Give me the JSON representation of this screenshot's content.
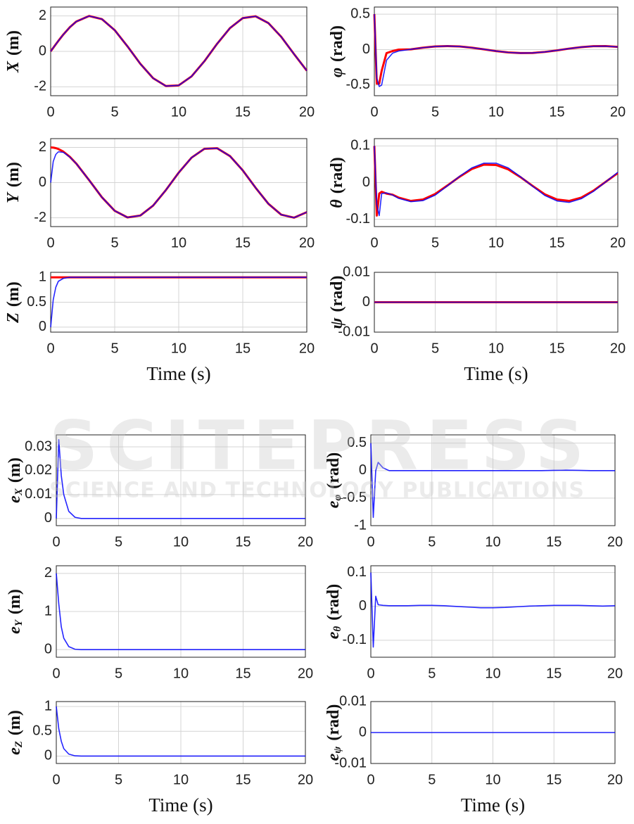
{
  "chart_data": [
    {
      "type": "line",
      "ylabel": "X",
      "ylabel_unit": "(m)",
      "x": [
        0,
        0.2,
        0.4,
        0.6,
        1,
        1.5,
        2,
        3,
        4,
        5,
        6,
        7,
        8,
        9,
        10,
        11,
        12,
        13,
        14,
        15,
        16,
        17,
        18,
        19,
        20
      ],
      "series": [
        {
          "color": "#ff0000",
          "values": [
            0,
            0.2,
            0.397,
            0.591,
            0.959,
            1.363,
            1.683,
            1.995,
            1.819,
            1.197,
            0.282,
            -0.701,
            -1.514,
            -1.955,
            -1.918,
            -1.411,
            -0.559,
            0.43,
            1.314,
            1.876,
            1.979,
            1.596,
            0.824,
            -0.15,
            -1.088
          ]
        },
        {
          "color": "#0000ff",
          "values": [
            0,
            0.2,
            0.397,
            0.591,
            0.959,
            1.363,
            1.683,
            1.995,
            1.819,
            1.197,
            0.282,
            -0.701,
            -1.514,
            -1.955,
            -1.918,
            -1.411,
            -0.559,
            0.43,
            1.314,
            1.876,
            1.979,
            1.596,
            0.824,
            -0.15,
            -1.088
          ]
        }
      ],
      "xlim": [
        0,
        20
      ],
      "ylim": [
        -2.5,
        2.5
      ],
      "xticks": [
        0,
        5,
        10,
        15,
        20
      ],
      "yticks": [
        -2,
        0,
        2
      ],
      "grid": true
    },
    {
      "type": "line",
      "ylabel": "Y",
      "ylabel_unit": "(m)",
      "x": [
        0,
        0.2,
        0.4,
        0.6,
        1,
        1.5,
        2,
        3,
        4,
        5,
        6,
        7,
        8,
        9,
        10,
        11,
        12,
        13,
        14,
        15,
        16,
        17,
        18,
        19,
        20
      ],
      "series": [
        {
          "color": "#ff0000",
          "values": [
            2,
            1.99,
            1.96,
            1.91,
            1.755,
            1.463,
            1.081,
            0.141,
            -0.832,
            -1.602,
            -1.98,
            -1.873,
            -1.307,
            -0.421,
            0.567,
            1.417,
            1.92,
            1.953,
            1.508,
            0.693,
            -0.291,
            -1.203,
            -1.822,
            -1.994,
            -1.678
          ]
        },
        {
          "color": "#0000ff",
          "values": [
            0,
            1.2,
            1.6,
            1.75,
            1.72,
            1.45,
            1.08,
            0.141,
            -0.832,
            -1.602,
            -1.98,
            -1.873,
            -1.307,
            -0.421,
            0.567,
            1.417,
            1.92,
            1.953,
            1.508,
            0.693,
            -0.291,
            -1.203,
            -1.822,
            -1.994,
            -1.678
          ]
        }
      ],
      "xlim": [
        0,
        20
      ],
      "ylim": [
        -2.5,
        2.5
      ],
      "xticks": [
        0,
        5,
        10,
        15,
        20
      ],
      "yticks": [
        -2,
        0,
        2
      ],
      "grid": true
    },
    {
      "type": "line",
      "ylabel": "Z",
      "ylabel_unit": "(m)",
      "xlabel": "Time (s)",
      "x": [
        0,
        0.2,
        0.4,
        0.6,
        1,
        1.5,
        2,
        3,
        4,
        5,
        6,
        7,
        8,
        9,
        10,
        11,
        12,
        13,
        14,
        15,
        16,
        17,
        18,
        19,
        20
      ],
      "series": [
        {
          "color": "#ff0000",
          "values": [
            1,
            1,
            1,
            1,
            1,
            1,
            1,
            1,
            1,
            1,
            1,
            1,
            1,
            1,
            1,
            1,
            1,
            1,
            1,
            1,
            1,
            1,
            1,
            1,
            1
          ]
        },
        {
          "color": "#0000ff",
          "values": [
            0,
            0.55,
            0.8,
            0.92,
            0.98,
            1,
            1,
            1,
            1,
            1,
            1,
            1,
            1,
            1,
            1,
            1,
            1,
            1,
            1,
            1,
            1,
            1,
            1,
            1,
            1
          ]
        }
      ],
      "xlim": [
        0,
        20
      ],
      "ylim": [
        -0.1,
        1.1
      ],
      "xticks": [
        0,
        5,
        10,
        15,
        20
      ],
      "yticks": [
        0,
        0.5,
        1
      ],
      "grid": true
    },
    {
      "type": "line",
      "ylabel": "φ",
      "ylabel_unit": "(rad)",
      "x": [
        0,
        0.2,
        0.4,
        0.6,
        1,
        1.5,
        2,
        3,
        4,
        5,
        6,
        7,
        8,
        9,
        10,
        11,
        12,
        13,
        14,
        15,
        16,
        17,
        18,
        19,
        20
      ],
      "series": [
        {
          "color": "#ff0000",
          "values": [
            0.5,
            -0.48,
            -0.48,
            -0.3,
            -0.05,
            -0.02,
            0,
            0.004,
            0.027,
            0.044,
            0.05,
            0.044,
            0.027,
            0.004,
            -0.021,
            -0.04,
            -0.049,
            -0.047,
            -0.033,
            -0.011,
            0.014,
            0.035,
            0.048,
            0.049,
            0.038
          ]
        },
        {
          "color": "#0000ff",
          "values": [
            0.5,
            -0.4,
            -0.52,
            -0.5,
            -0.15,
            -0.05,
            -0.02,
            0.004,
            0.027,
            0.044,
            0.05,
            0.044,
            0.027,
            0.004,
            -0.021,
            -0.04,
            -0.049,
            -0.047,
            -0.033,
            -0.011,
            0.014,
            0.035,
            0.048,
            0.049,
            0.038
          ]
        }
      ],
      "xlim": [
        0,
        20
      ],
      "ylim": [
        -0.65,
        0.6
      ],
      "xticks": [
        0,
        5,
        10,
        15,
        20
      ],
      "yticks": [
        -0.5,
        0,
        0.5
      ],
      "grid": true
    },
    {
      "type": "line",
      "ylabel": "θ",
      "ylabel_unit": "(rad)",
      "x": [
        0,
        0.2,
        0.4,
        0.6,
        1,
        1.5,
        2,
        3,
        4,
        5,
        6,
        7,
        8,
        9,
        10,
        11,
        12,
        13,
        14,
        15,
        16,
        17,
        18,
        19,
        20
      ],
      "series": [
        {
          "color": "#ff0000",
          "values": [
            0.1,
            -0.09,
            -0.03,
            -0.025,
            -0.03,
            -0.033,
            -0.041,
            -0.05,
            -0.046,
            -0.031,
            -0.008,
            0.016,
            0.037,
            0.049,
            0.048,
            0.036,
            0.015,
            -0.009,
            -0.032,
            -0.046,
            -0.05,
            -0.041,
            -0.022,
            0.002,
            0.026
          ]
        },
        {
          "color": "#0000ff",
          "values": [
            0.1,
            -0.06,
            -0.09,
            -0.03,
            -0.028,
            -0.034,
            -0.043,
            -0.052,
            -0.049,
            -0.034,
            -0.009,
            0.017,
            0.04,
            0.053,
            0.053,
            0.04,
            0.016,
            -0.01,
            -0.035,
            -0.05,
            -0.054,
            -0.044,
            -0.024,
            0.002,
            0.028
          ]
        }
      ],
      "xlim": [
        0,
        20
      ],
      "ylim": [
        -0.12,
        0.12
      ],
      "xticks": [
        0,
        5,
        10,
        15,
        20
      ],
      "yticks": [
        -0.1,
        0,
        0.1
      ],
      "grid": true
    },
    {
      "type": "line",
      "ylabel": "ψ",
      "ylabel_unit": "(rad)",
      "xlabel": "Time (s)",
      "x": [
        0,
        0.2,
        0.4,
        0.6,
        1,
        1.5,
        2,
        3,
        4,
        5,
        6,
        7,
        8,
        9,
        10,
        11,
        12,
        13,
        14,
        15,
        16,
        17,
        18,
        19,
        20
      ],
      "series": [
        {
          "color": "#ff0000",
          "values": [
            0,
            0,
            0,
            0,
            0,
            0,
            0,
            0,
            0,
            0,
            0,
            0,
            0,
            0,
            0,
            0,
            0,
            0,
            0,
            0,
            0,
            0,
            0,
            0,
            0
          ]
        },
        {
          "color": "#0000ff",
          "values": [
            0,
            0,
            0,
            0,
            0,
            0,
            0,
            0,
            0,
            0,
            0,
            0,
            0,
            0,
            0,
            0,
            0,
            0,
            0,
            0,
            0,
            0,
            0,
            0,
            0
          ]
        }
      ],
      "xlim": [
        0,
        20
      ],
      "ylim": [
        -0.01,
        0.01
      ],
      "xticks": [
        0,
        5,
        10,
        15,
        20
      ],
      "yticks": [
        -0.01,
        0,
        0.01
      ],
      "grid": true
    },
    {
      "type": "line",
      "ylabel": "e",
      "ylabel_sub": "X",
      "ylabel_unit": "(m)",
      "x": [
        0,
        0.2,
        0.4,
        0.6,
        1,
        1.5,
        2,
        3,
        4,
        5,
        6,
        7,
        8,
        9,
        10,
        11,
        12,
        13,
        14,
        15,
        16,
        17,
        18,
        19,
        20
      ],
      "series": [
        {
          "color": "#0000ff",
          "values": [
            0,
            0.033,
            0.018,
            0.01,
            0.003,
            0.0005,
            0,
            0,
            0,
            0,
            0,
            0,
            0,
            0,
            0,
            0,
            0,
            0,
            0,
            0,
            0,
            0,
            0,
            0,
            0
          ]
        }
      ],
      "xlim": [
        0,
        20
      ],
      "ylim": [
        -0.003,
        0.035
      ],
      "xticks": [
        0,
        5,
        10,
        15,
        20
      ],
      "yticks": [
        0,
        0.01,
        0.02,
        0.03
      ],
      "grid": true
    },
    {
      "type": "line",
      "ylabel": "e",
      "ylabel_sub": "Y",
      "ylabel_unit": "(m)",
      "x": [
        0,
        0.2,
        0.4,
        0.6,
        1,
        1.5,
        2,
        3,
        4,
        5,
        6,
        7,
        8,
        9,
        10,
        11,
        12,
        13,
        14,
        15,
        16,
        17,
        18,
        19,
        20
      ],
      "series": [
        {
          "color": "#0000ff",
          "values": [
            2,
            1.2,
            0.6,
            0.3,
            0.08,
            0.01,
            0,
            0,
            0,
            0,
            0,
            0,
            0,
            0,
            0,
            0,
            0,
            0,
            0,
            0,
            0,
            0,
            0,
            0,
            0
          ]
        }
      ],
      "xlim": [
        0,
        20
      ],
      "ylim": [
        -0.2,
        2.2
      ],
      "xticks": [
        0,
        5,
        10,
        15,
        20
      ],
      "yticks": [
        0,
        1,
        2
      ],
      "grid": true
    },
    {
      "type": "line",
      "ylabel": "e",
      "ylabel_sub": "Z",
      "ylabel_unit": "(m)",
      "xlabel": "Time (s)",
      "x": [
        0,
        0.2,
        0.4,
        0.6,
        1,
        1.5,
        2,
        3,
        4,
        5,
        6,
        7,
        8,
        9,
        10,
        11,
        12,
        13,
        14,
        15,
        16,
        17,
        18,
        19,
        20
      ],
      "series": [
        {
          "color": "#0000ff",
          "values": [
            1,
            0.55,
            0.3,
            0.15,
            0.04,
            0.005,
            0,
            0,
            0,
            0,
            0,
            0,
            0,
            0,
            0,
            0,
            0,
            0,
            0,
            0,
            0,
            0,
            0,
            0,
            0
          ]
        }
      ],
      "xlim": [
        0,
        20
      ],
      "ylim": [
        -0.15,
        1.1
      ],
      "xticks": [
        0,
        5,
        10,
        15,
        20
      ],
      "yticks": [
        0,
        0.5,
        1
      ],
      "grid": true
    },
    {
      "type": "line",
      "ylabel": "e",
      "ylabel_sub": "φ",
      "ylabel_unit": "(rad)",
      "x": [
        0,
        0.2,
        0.4,
        0.6,
        1,
        1.5,
        2,
        3,
        4,
        5,
        6,
        7,
        8,
        9,
        10,
        11,
        12,
        13,
        14,
        15,
        16,
        17,
        18,
        19,
        20
      ],
      "series": [
        {
          "color": "#0000ff",
          "values": [
            0.5,
            -0.85,
            0,
            0.15,
            0.05,
            0,
            0,
            0,
            0,
            0,
            0,
            0,
            0,
            0,
            0,
            0,
            0,
            0,
            0,
            0.005,
            0.008,
            0.005,
            0,
            0,
            0
          ]
        }
      ],
      "xlim": [
        0,
        20
      ],
      "ylim": [
        -1,
        0.65
      ],
      "xticks": [
        0,
        5,
        10,
        15,
        20
      ],
      "yticks": [
        -1,
        -0.5,
        0,
        0.5
      ],
      "grid": true
    },
    {
      "type": "line",
      "ylabel": "e",
      "ylabel_sub": "θ",
      "ylabel_unit": "(rad)",
      "x": [
        0,
        0.2,
        0.4,
        0.6,
        1,
        1.5,
        2,
        3,
        4,
        5,
        6,
        7,
        8,
        9,
        10,
        11,
        12,
        13,
        14,
        15,
        16,
        17,
        18,
        19,
        20
      ],
      "series": [
        {
          "color": "#0000ff",
          "values": [
            0.1,
            -0.12,
            0.03,
            0.005,
            0.003,
            0.002,
            0.002,
            0.002,
            0.003,
            0.003,
            0.002,
            0,
            -0.002,
            -0.004,
            -0.004,
            -0.003,
            -0.001,
            0.001,
            0.002,
            0.003,
            0.003,
            0.003,
            0.002,
            0.001,
            0.002
          ]
        }
      ],
      "xlim": [
        0,
        20
      ],
      "ylim": [
        -0.15,
        0.12
      ],
      "xticks": [
        0,
        5,
        10,
        15,
        20
      ],
      "yticks": [
        -0.1,
        0,
        0.1
      ],
      "grid": true
    },
    {
      "type": "line",
      "ylabel": "e",
      "ylabel_sub": "ψ",
      "ylabel_unit": "(rad)",
      "xlabel": "Time (s)",
      "x": [
        0,
        0.2,
        0.4,
        0.6,
        1,
        1.5,
        2,
        3,
        4,
        5,
        6,
        7,
        8,
        9,
        10,
        11,
        12,
        13,
        14,
        15,
        16,
        17,
        18,
        19,
        20
      ],
      "series": [
        {
          "color": "#0000ff",
          "values": [
            0,
            0,
            0,
            0,
            0,
            0,
            0,
            0,
            0,
            0,
            0,
            0,
            0,
            0,
            0,
            0,
            0,
            0,
            0,
            0,
            0,
            0,
            0,
            0,
            0
          ]
        }
      ],
      "xlim": [
        0,
        20
      ],
      "ylim": [
        -0.01,
        0.01
      ],
      "xticks": [
        0,
        5,
        10,
        15,
        20
      ],
      "yticks": [
        -0.01,
        0,
        0.01
      ],
      "grid": true
    }
  ],
  "watermark": {
    "title": "SCITEPRESS",
    "subtitle": "SCIENCE AND TECHNOLOGY PUBLICATIONS"
  }
}
